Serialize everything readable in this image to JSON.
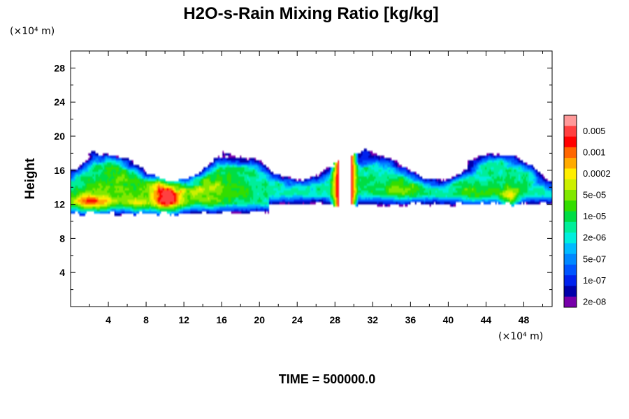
{
  "chart_data": {
    "type": "heatmap",
    "title": "H2O-s-Rain Mixing Ratio [kg/kg]",
    "xlabel": "",
    "ylabel": "Height",
    "x_unit": "(×10⁴ m)",
    "y_unit": "(×10⁴ m)",
    "xlim": [
      0,
      51
    ],
    "ylim": [
      0,
      30
    ],
    "xticks": [
      "4",
      "8",
      "12",
      "16",
      "20",
      "24",
      "28",
      "32",
      "36",
      "40",
      "44",
      "48"
    ],
    "yticks": [
      "4",
      "8",
      "12",
      "16",
      "20",
      "24",
      "28"
    ],
    "colorbar": {
      "labels": [
        "0.005",
        "0.001",
        "0.0002",
        "5e-05",
        "1e-05",
        "2e-06",
        "5e-07",
        "1e-07",
        "2e-08"
      ],
      "colors": [
        "#ff9999",
        "#ff4040",
        "#ff0000",
        "#ff6600",
        "#ffaa00",
        "#ffee00",
        "#ccf000",
        "#80e800",
        "#33dd00",
        "#00dd44",
        "#00ee99",
        "#00eedd",
        "#00bbff",
        "#0088ff",
        "#0055ff",
        "#0022ee",
        "#0000aa",
        "#7700aa"
      ]
    },
    "footer": "TIME = 500000.0"
  }
}
